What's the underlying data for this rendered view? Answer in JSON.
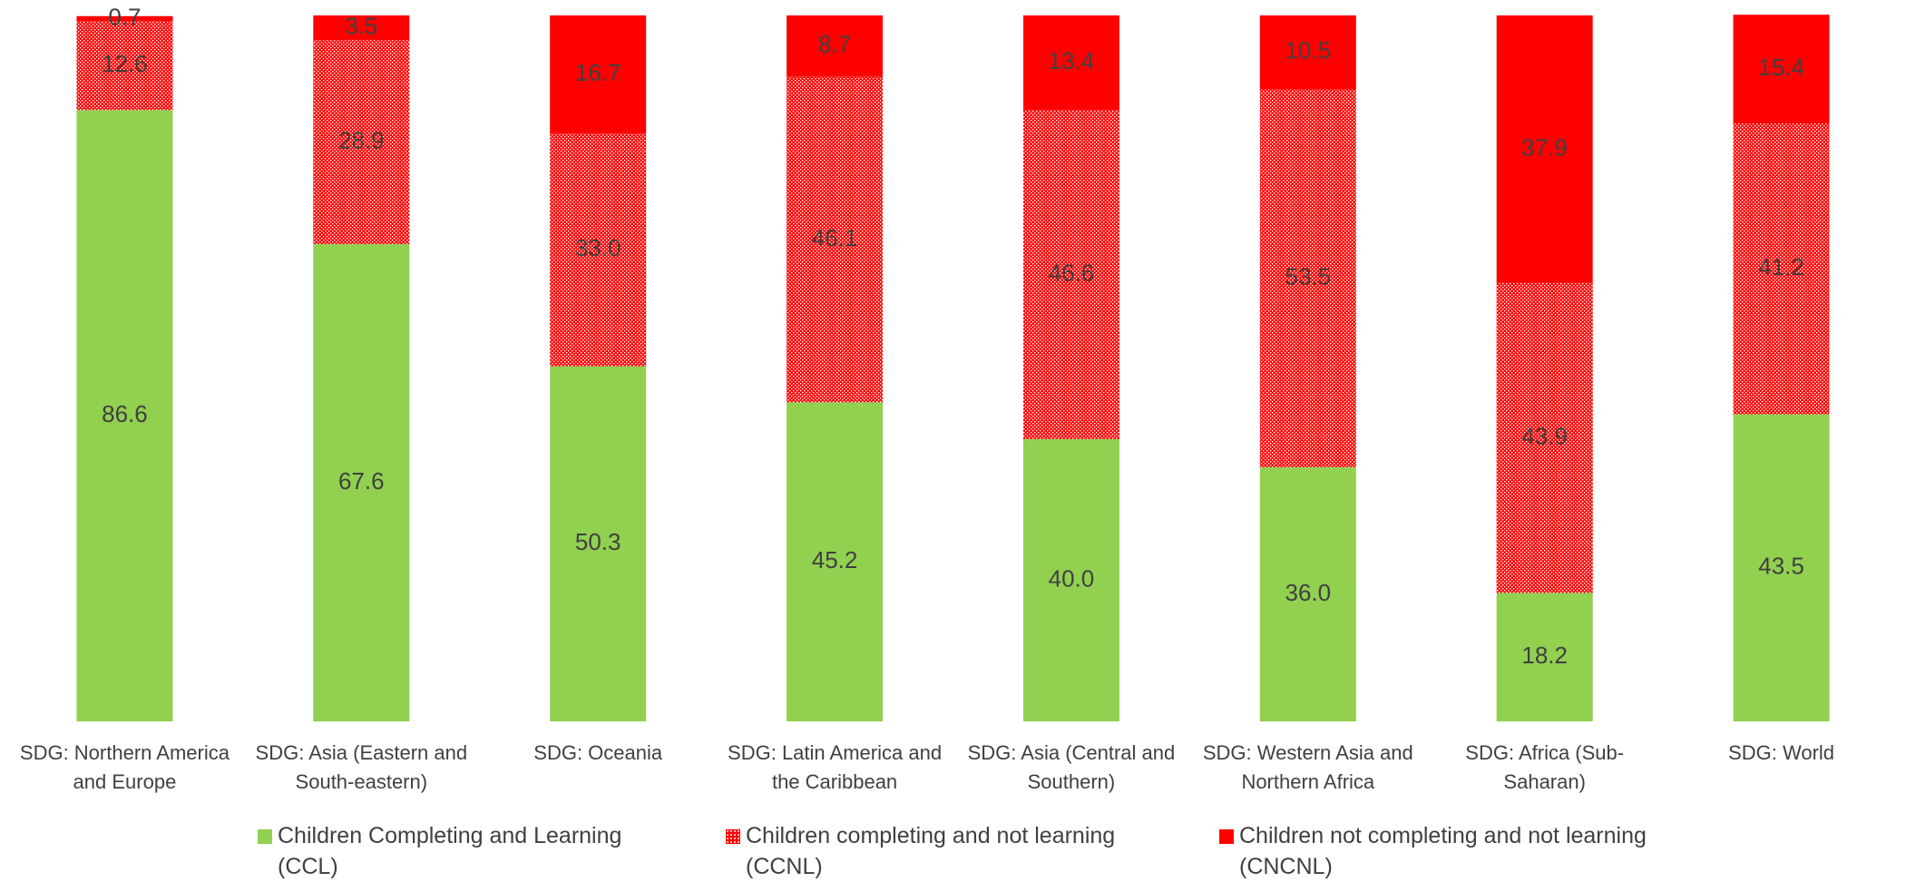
{
  "chart_data": {
    "type": "stacked_bar",
    "categories": [
      "SDG: Northern America and Europe",
      "SDG: Asia (Eastern and South-eastern)",
      "SDG: Oceania",
      "SDG: Latin America and the Caribbean",
      "SDG: Asia (Central and Southern)",
      "SDG: Western Asia and Northern Africa",
      "SDG: Africa (Sub-Saharan)",
      "SDG: World"
    ],
    "series": [
      {
        "name": "Children Completing and Learning (CCL)",
        "color": "#92d050",
        "values": [
          86.6,
          67.6,
          50.3,
          45.2,
          40.0,
          36.0,
          18.2,
          43.5
        ],
        "value_labels": [
          "86.6",
          "67.6",
          "50.3",
          "45.2",
          "40.0",
          "36.0",
          "18.2",
          "43.5"
        ]
      },
      {
        "name": "Children completing and not learning (CCNL)",
        "color": "#ff0000",
        "pattern": "dotted",
        "values": [
          12.6,
          28.9,
          33.0,
          46.1,
          46.6,
          53.5,
          43.9,
          41.2
        ],
        "value_labels": [
          "12.6",
          "28.9",
          "33.0",
          "46.1",
          "46.6",
          "53.5",
          "43.9",
          "41.2"
        ]
      },
      {
        "name": "Children not completing and not learning (CNCNL)",
        "color": "#ff0000",
        "values": [
          0.7,
          3.5,
          16.7,
          8.7,
          13.4,
          10.5,
          37.9,
          15.4
        ],
        "value_labels": [
          "0.7",
          "3.5",
          "16.7",
          "8.7",
          "13.4",
          "10.5",
          "37.9",
          "15.4"
        ]
      }
    ],
    "ylim": [
      0,
      100
    ],
    "legend": "bottom"
  }
}
